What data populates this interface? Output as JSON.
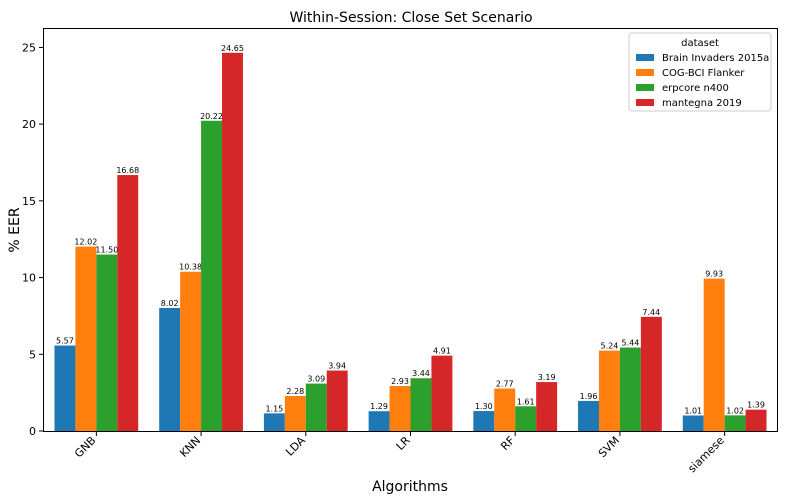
{
  "chart_data": {
    "type": "bar",
    "title": "Within-Session: Close Set Scenario",
    "xlabel": "Algorithms",
    "ylabel": "% EER",
    "ylim": [
      0,
      26.2
    ],
    "yticks": [
      0,
      5,
      10,
      15,
      20,
      25
    ],
    "grid": false,
    "legend_title": "dataset",
    "legend_position": "top-right",
    "categories": [
      "GNB",
      "KNN",
      "LDA",
      "LR",
      "RF",
      "SVM",
      "siamese"
    ],
    "series": [
      {
        "name": "Brain Invaders 2015a",
        "color": "#1f77b4",
        "values": [
          5.57,
          8.02,
          1.15,
          1.29,
          1.3,
          1.96,
          1.01
        ],
        "labels": [
          "5.57",
          "8.02",
          "1.15",
          "1.29",
          "1.30",
          "1.96",
          "1.01"
        ]
      },
      {
        "name": "COG-BCI Flanker",
        "color": "#ff7f0e",
        "values": [
          12.02,
          10.38,
          2.28,
          2.93,
          2.77,
          5.24,
          9.93
        ],
        "labels": [
          "12.02",
          "10.38",
          "2.28",
          "2.93",
          "2.77",
          "5.24",
          "9.93"
        ]
      },
      {
        "name": "erpcore n400",
        "color": "#2ca02c",
        "values": [
          11.5,
          20.22,
          3.09,
          3.44,
          1.61,
          5.44,
          1.02
        ],
        "labels": [
          "11.50",
          "20.22",
          "3.09",
          "3.44",
          "1.61",
          "5.44",
          "1.02"
        ]
      },
      {
        "name": "mantegna 2019",
        "color": "#d62728",
        "values": [
          16.68,
          24.65,
          3.94,
          4.91,
          3.19,
          7.44,
          1.39
        ],
        "labels": [
          "16.68",
          "24.65",
          "3.94",
          "4.91",
          "3.19",
          "7.44",
          "1.39"
        ]
      }
    ]
  }
}
